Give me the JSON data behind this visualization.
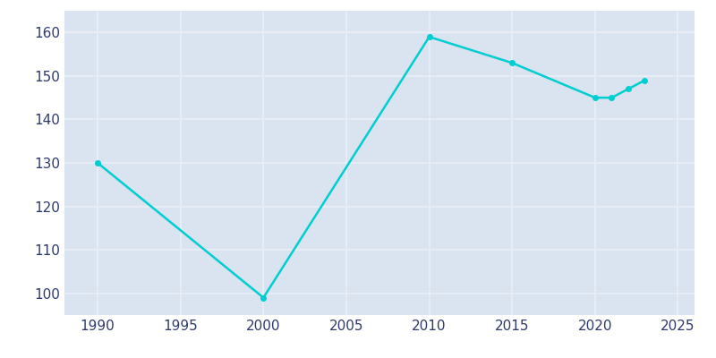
{
  "years": [
    1990,
    2000,
    2010,
    2015,
    2020,
    2021,
    2022,
    2023
  ],
  "population": [
    130,
    99,
    159,
    153,
    145,
    145,
    147,
    149
  ],
  "line_color": "#00CED1",
  "marker": "o",
  "marker_size": 4,
  "bg_color": "#DAE3F0",
  "fig_bg_color": "#FFFFFF",
  "grid_color": "#EAEFF7",
  "tick_color": "#2E3A6E",
  "xlim": [
    1988,
    2026
  ],
  "ylim": [
    95,
    165
  ],
  "xticks": [
    1990,
    1995,
    2000,
    2005,
    2010,
    2015,
    2020,
    2025
  ],
  "yticks": [
    100,
    110,
    120,
    130,
    140,
    150,
    160
  ],
  "title_color": "#2E3A6E",
  "title_fontsize": 13
}
